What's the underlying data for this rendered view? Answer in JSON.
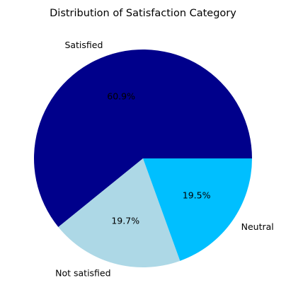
{
  "chart_data": {
    "type": "pie",
    "title": "Distribution of Satisfaction Category",
    "slices": [
      {
        "label": "Satisfied",
        "value": 60.9,
        "pct_label": "60.9%",
        "color": "#00008B"
      },
      {
        "label": "Not satisfied",
        "value": 19.7,
        "pct_label": "19.7%",
        "color": "#ADD8E6"
      },
      {
        "label": "Neutral",
        "value": 19.5,
        "pct_label": "19.5%",
        "color": "#00BFFF"
      }
    ],
    "legend": "none"
  }
}
